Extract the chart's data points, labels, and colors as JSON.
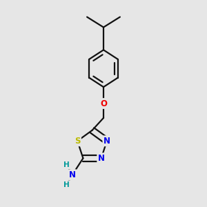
{
  "bg": "#e6e6e6",
  "bc": "#111111",
  "bw": 1.6,
  "dbo": 0.015,
  "colors": {
    "S": "#bbbb00",
    "N": "#0000ee",
    "O": "#ee0000",
    "H": "#009999"
  },
  "fs": 8.5
}
